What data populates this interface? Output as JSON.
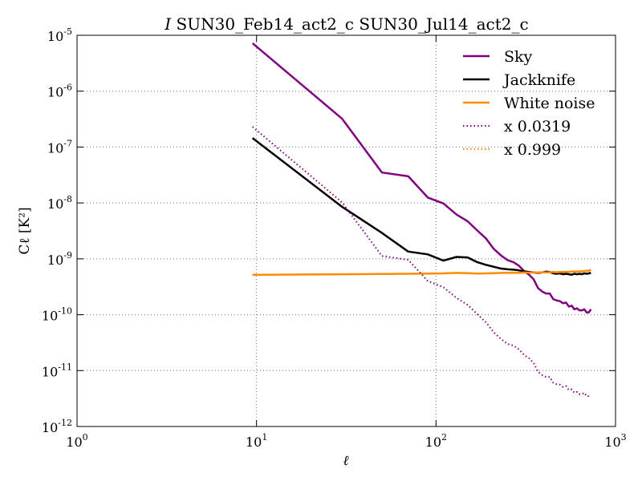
{
  "chart_data": {
    "type": "line",
    "title_italic": "I",
    "title": "SUN30_Feb14_act2_c SUN30_Jul14_act2_c",
    "xlabel": "ℓ",
    "ylabel": "Cℓ [K²]",
    "xscale": "log",
    "yscale": "log",
    "xlim": [
      1,
      1000
    ],
    "ylim": [
      1e-12,
      1e-05
    ],
    "grid": true,
    "legend_position": "top-right",
    "x_ticks": [
      {
        "value": 1,
        "base": "10",
        "exp": "0"
      },
      {
        "value": 10,
        "base": "10",
        "exp": "1"
      },
      {
        "value": 100,
        "base": "10",
        "exp": "2"
      },
      {
        "value": 1000,
        "base": "10",
        "exp": "3"
      }
    ],
    "y_ticks": [
      {
        "value": 1e-12,
        "base": "10",
        "exp": "-12"
      },
      {
        "value": 1e-11,
        "base": "10",
        "exp": "-11"
      },
      {
        "value": 1e-10,
        "base": "10",
        "exp": "-10"
      },
      {
        "value": 1e-09,
        "base": "10",
        "exp": "-9"
      },
      {
        "value": 1e-08,
        "base": "10",
        "exp": "-8"
      },
      {
        "value": 1e-07,
        "base": "10",
        "exp": "-7"
      },
      {
        "value": 1e-06,
        "base": "10",
        "exp": "-6"
      },
      {
        "value": 1e-05,
        "base": "10",
        "exp": "-5"
      }
    ],
    "series": [
      {
        "name": "Sky",
        "color": "#800080",
        "style": "solid",
        "x": [
          9.5,
          30,
          50,
          70,
          90,
          110,
          130,
          150,
          170,
          190,
          210,
          230,
          250,
          270,
          290,
          310,
          330,
          350,
          370,
          390,
          410,
          430,
          450,
          470,
          490,
          510,
          530,
          550,
          570,
          590,
          610,
          630,
          650,
          670,
          690,
          710,
          730
        ],
        "y": [
          7.2e-06,
          3.2e-07,
          3.5e-08,
          3e-08,
          1.25e-08,
          9.8e-09,
          6.2e-09,
          4.7e-09,
          3.2e-09,
          2.3e-09,
          1.5e-09,
          1.15e-09,
          9.5e-10,
          8.7e-10,
          7.5e-10,
          6e-10,
          5.2e-10,
          4.3e-10,
          3e-10,
          2.6e-10,
          2.4e-10,
          2.4e-10,
          1.9e-10,
          1.8e-10,
          1.75e-10,
          1.6e-10,
          1.65e-10,
          1.4e-10,
          1.45e-10,
          1.25e-10,
          1.3e-10,
          1.2e-10,
          1.2e-10,
          1.25e-10,
          1.1e-10,
          1.1e-10,
          1.25e-10
        ]
      },
      {
        "name": "Jackknife",
        "color": "#000000",
        "style": "solid",
        "x": [
          9.5,
          30,
          50,
          70,
          90,
          110,
          130,
          150,
          170,
          190,
          210,
          230,
          250,
          270,
          290,
          310,
          330,
          350,
          370,
          390,
          410,
          430,
          450,
          470,
          490,
          510,
          530,
          550,
          570,
          590,
          610,
          630,
          650,
          670,
          690,
          710,
          730
        ],
        "y": [
          1.45e-07,
          8.5e-09,
          2.9e-09,
          1.35e-09,
          1.2e-09,
          9.3e-10,
          1.08e-09,
          1.06e-09,
          8.7e-10,
          7.8e-10,
          7.2e-10,
          6.7e-10,
          6.5e-10,
          6.4e-10,
          6.2e-10,
          6e-10,
          5.8e-10,
          5.7e-10,
          5.6e-10,
          5.7e-10,
          5.9e-10,
          5.8e-10,
          5.5e-10,
          5.4e-10,
          5.5e-10,
          5.3e-10,
          5.4e-10,
          5.3e-10,
          5.2e-10,
          5.4e-10,
          5.3e-10,
          5.4e-10,
          5.3e-10,
          5.5e-10,
          5.4e-10,
          5.5e-10,
          5.6e-10
        ]
      },
      {
        "name": "White noise",
        "color": "#FF8C00",
        "style": "solid",
        "x": [
          9.5,
          30,
          50,
          70,
          90,
          110,
          130,
          150,
          170,
          190,
          210,
          230,
          250,
          270,
          290,
          310,
          330,
          350,
          370,
          390,
          410,
          430,
          450,
          470,
          490,
          510,
          530,
          550,
          570,
          590,
          610,
          630,
          650,
          670,
          690,
          710,
          730
        ],
        "y": [
          5.15e-10,
          5.3e-10,
          5.35e-10,
          5.4e-10,
          5.45e-10,
          5.5e-10,
          5.6e-10,
          5.55e-10,
          5.45e-10,
          5.5e-10,
          5.55e-10,
          5.6e-10,
          5.6e-10,
          5.65e-10,
          5.6e-10,
          5.7e-10,
          5.65e-10,
          5.7e-10,
          5.7e-10,
          5.75e-10,
          5.7e-10,
          5.75e-10,
          5.8e-10,
          5.75e-10,
          5.8e-10,
          5.8e-10,
          5.85e-10,
          5.85e-10,
          5.9e-10,
          5.9e-10,
          5.95e-10,
          6e-10,
          5.95e-10,
          6.05e-10,
          6.1e-10,
          6.15e-10,
          6.4e-10
        ]
      },
      {
        "name": "x 0.0319",
        "color": "#800080",
        "style": "dotted",
        "x": [
          9.5,
          30,
          50,
          70,
          90,
          110,
          130,
          150,
          170,
          190,
          210,
          230,
          250,
          270,
          290,
          310,
          330,
          350,
          370,
          390,
          410,
          430,
          450,
          470,
          490,
          510,
          530,
          550,
          570,
          590,
          610,
          630,
          650,
          670,
          690,
          710,
          730
        ],
        "y": [
          2.3e-07,
          1.02e-08,
          1.12e-09,
          9.6e-10,
          4e-10,
          3.1e-10,
          2e-10,
          1.5e-10,
          1.02e-10,
          7.3e-11,
          4.8e-11,
          3.7e-11,
          3e-11,
          2.8e-11,
          2.4e-11,
          1.9e-11,
          1.66e-11,
          1.37e-11,
          9.6e-12,
          8.3e-12,
          7.7e-12,
          7.7e-12,
          6.1e-12,
          5.7e-12,
          5.6e-12,
          5.1e-12,
          5.3e-12,
          4.5e-12,
          4.6e-12,
          4e-12,
          4.15e-12,
          3.8e-12,
          3.8e-12,
          4e-12,
          3.5e-12,
          3.5e-12,
          3.6e-12
        ]
      },
      {
        "name": "x 0.999",
        "color": "#FF8C00",
        "style": "dotted",
        "x": [
          9.5,
          30,
          50,
          70,
          90,
          110,
          130,
          150,
          170,
          190,
          210,
          230,
          250,
          270,
          290,
          310,
          330,
          350,
          370,
          390,
          410,
          430,
          450,
          470,
          490,
          510,
          530,
          550,
          570,
          590,
          610,
          630,
          650,
          670,
          690,
          710,
          730
        ],
        "y": [
          5.14e-10,
          5.29e-10,
          5.34e-10,
          5.39e-10,
          5.44e-10,
          5.49e-10,
          5.59e-10,
          5.54e-10,
          5.44e-10,
          5.49e-10,
          5.54e-10,
          5.59e-10,
          5.59e-10,
          5.64e-10,
          5.59e-10,
          5.69e-10,
          5.64e-10,
          5.69e-10,
          5.69e-10,
          5.74e-10,
          5.69e-10,
          5.74e-10,
          5.79e-10,
          5.74e-10,
          5.79e-10,
          5.79e-10,
          5.84e-10,
          5.84e-10,
          5.89e-10,
          5.89e-10,
          5.94e-10,
          5.99e-10,
          5.94e-10,
          6.04e-10,
          6.09e-10,
          6.14e-10,
          6.39e-10
        ]
      }
    ]
  }
}
